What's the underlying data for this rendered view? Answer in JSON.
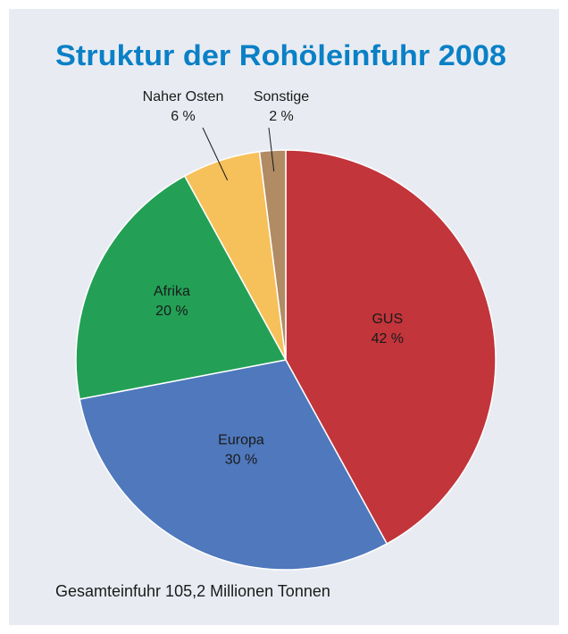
{
  "chart_data": {
    "type": "pie",
    "title": "Struktur der Rohöleinfuhr 2008",
    "categories": [
      "GUS",
      "Europa",
      "Afrika",
      "Naher Osten",
      "Sonstige"
    ],
    "values": [
      42,
      30,
      20,
      6,
      2
    ],
    "value_labels": [
      "42 %",
      "30 %",
      "20 %",
      "6 %",
      "2 %"
    ],
    "colors": [
      "#c1353b",
      "#4f78bd",
      "#23a056",
      "#f6c15b",
      "#b08b64"
    ],
    "note": "Gesamteinfuhr 105,2 Millionen Tonnen"
  }
}
